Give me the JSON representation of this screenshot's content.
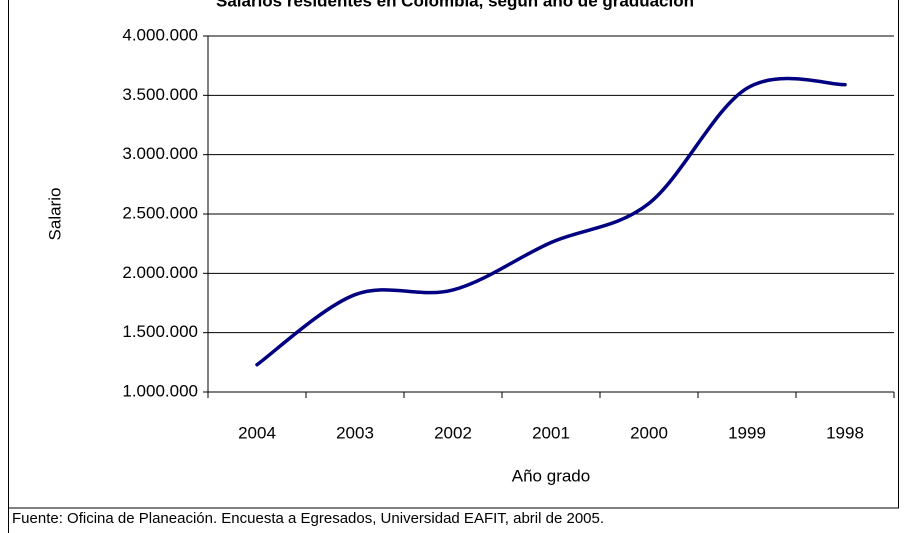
{
  "chart_data": {
    "type": "line",
    "title": "Salarios residentes en Colombia, según año de graduación",
    "xlabel": "Año grado",
    "ylabel": "Salario",
    "source": "Fuente: Oficina de Planeación. Encuesta a Egresados, Universidad EAFIT, abril de 2005.",
    "categories": [
      "2004",
      "2003",
      "2002",
      "2001",
      "2000",
      "1999",
      "1998"
    ],
    "series": [
      {
        "name": "Salario",
        "color": "#000080",
        "values": [
          1230000,
          1820000,
          1860000,
          2260000,
          2590000,
          3560000,
          3590000
        ]
      }
    ],
    "ylim": [
      1000000,
      4000000
    ],
    "yticks": [
      {
        "value": 1000000,
        "label": "1.000.000"
      },
      {
        "value": 1500000,
        "label": "1.500.000"
      },
      {
        "value": 2000000,
        "label": "2.000.000"
      },
      {
        "value": 2500000,
        "label": "2.500.000"
      },
      {
        "value": 3000000,
        "label": "3.000.000"
      },
      {
        "value": 3500000,
        "label": "3.500.000"
      },
      {
        "value": 4000000,
        "label": "4.000.000"
      }
    ],
    "grid": true,
    "smooth": true
  }
}
